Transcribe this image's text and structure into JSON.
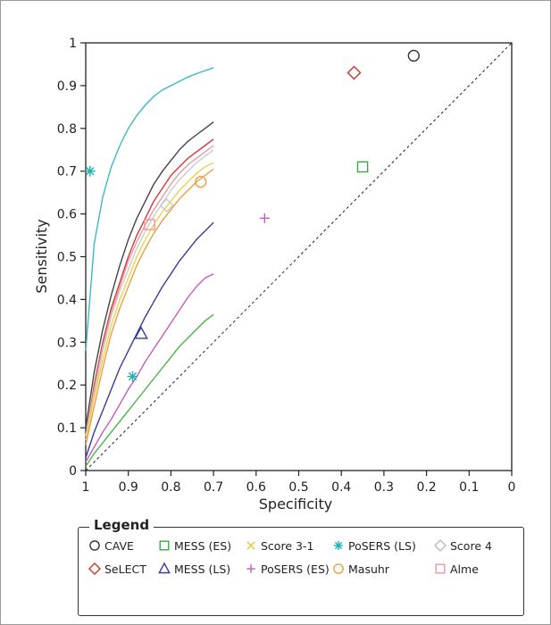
{
  "chart_data": {
    "type": "line",
    "xlabel": "Specificity",
    "ylabel": "Sensitivity",
    "xlim": [
      1,
      0
    ],
    "ylim": [
      0,
      1
    ],
    "x_reversed": true,
    "x_ticks": [
      "1",
      "0.9",
      "0.8",
      "0.7",
      "0.6",
      "0.5",
      "0.4",
      "0.3",
      "0.2",
      "0.1",
      "0"
    ],
    "y_ticks": [
      "0",
      "0.1",
      "0.2",
      "0.3",
      "0.4",
      "0.5",
      "0.6",
      "0.7",
      "0.8",
      "0.9",
      "1"
    ],
    "x_tick_values": [
      1,
      0.9,
      0.8,
      0.7,
      0.6,
      0.5,
      0.4,
      0.3,
      0.2,
      0.1,
      0
    ],
    "y_tick_values": [
      0,
      0.1,
      0.2,
      0.3,
      0.4,
      0.5,
      0.6,
      0.7,
      0.8,
      0.9,
      1
    ],
    "reference_line": "chance (dashed diagonal)",
    "legend_title": "Legend",
    "legend_placement": "bottom",
    "points": [
      {
        "name": "CAVE",
        "marker": "circle",
        "color": "#333333",
        "specificity": 0.23,
        "sensitivity": 0.97
      },
      {
        "name": "SeLECT",
        "marker": "diamond",
        "color": "#c0392b",
        "specificity": 0.37,
        "sensitivity": 0.93
      },
      {
        "name": "MESS (ES)",
        "marker": "square",
        "color": "#3aa845",
        "specificity": 0.35,
        "sensitivity": 0.71
      },
      {
        "name": "MESS (LS)",
        "marker": "triangle",
        "color": "#3a3a9a",
        "specificity": 0.87,
        "sensitivity": 0.32
      },
      {
        "name": "Score 3-1",
        "marker": "x",
        "color": "#e8c92f",
        "specificity": null,
        "sensitivity": null
      },
      {
        "name": "PoSERS (ES)",
        "marker": "plus",
        "color": "#c55cc0",
        "specificity": 0.58,
        "sensitivity": 0.59
      },
      {
        "name": "PoSERS (LS)",
        "marker": "asterisk",
        "color": "#1fb0b0",
        "specificity": 0.99,
        "sensitivity": 0.7
      },
      {
        "name": "PoSERS (LS)",
        "marker": "asterisk",
        "color": "#1fb0b0",
        "specificity": 0.89,
        "sensitivity": 0.22
      },
      {
        "name": "Masuhr",
        "marker": "circle",
        "color": "#e8a040",
        "specificity": 0.73,
        "sensitivity": 0.675
      },
      {
        "name": "Score 4",
        "marker": "diamond",
        "color": "#c8c8c8",
        "specificity": 0.81,
        "sensitivity": 0.62
      },
      {
        "name": "Alme",
        "marker": "square",
        "color": "#e89aa0",
        "specificity": 0.85,
        "sensitivity": 0.575
      }
    ],
    "curves": [
      {
        "color": "#3bb8c8",
        "specificity": [
          1,
          0.98,
          0.96,
          0.94,
          0.92,
          0.9,
          0.88,
          0.86,
          0.84,
          0.82,
          0.8,
          0.78,
          0.76,
          0.74,
          0.72,
          0.7
        ],
        "sensitivity": [
          0.28,
          0.53,
          0.64,
          0.71,
          0.76,
          0.8,
          0.83,
          0.855,
          0.875,
          0.89,
          0.9,
          0.91,
          0.92,
          0.928,
          0.935,
          0.942
        ]
      },
      {
        "color": "#444444",
        "specificity": [
          1,
          0.98,
          0.96,
          0.94,
          0.92,
          0.9,
          0.88,
          0.86,
          0.84,
          0.82,
          0.8,
          0.78,
          0.76,
          0.74,
          0.72,
          0.7
        ],
        "sensitivity": [
          0.1,
          0.23,
          0.33,
          0.41,
          0.48,
          0.54,
          0.59,
          0.63,
          0.67,
          0.7,
          0.725,
          0.75,
          0.77,
          0.785,
          0.8,
          0.815
        ]
      },
      {
        "color": "#d23a3a",
        "specificity": [
          1,
          0.98,
          0.96,
          0.94,
          0.92,
          0.9,
          0.88,
          0.86,
          0.84,
          0.82,
          0.8,
          0.78,
          0.76,
          0.74,
          0.72,
          0.7
        ],
        "sensitivity": [
          0.08,
          0.2,
          0.3,
          0.38,
          0.44,
          0.5,
          0.55,
          0.59,
          0.63,
          0.66,
          0.69,
          0.71,
          0.73,
          0.745,
          0.76,
          0.775
        ]
      },
      {
        "color": "#e89aa0",
        "specificity": [
          1,
          0.98,
          0.96,
          0.94,
          0.92,
          0.9,
          0.88,
          0.86,
          0.84,
          0.82,
          0.8,
          0.78,
          0.76,
          0.74,
          0.72,
          0.7
        ],
        "sensitivity": [
          0.08,
          0.19,
          0.29,
          0.37,
          0.43,
          0.49,
          0.535,
          0.575,
          0.61,
          0.64,
          0.67,
          0.695,
          0.715,
          0.73,
          0.745,
          0.76
        ]
      },
      {
        "color": "#cccccc",
        "specificity": [
          1,
          0.98,
          0.96,
          0.94,
          0.92,
          0.9,
          0.88,
          0.86,
          0.84,
          0.82,
          0.8,
          0.78,
          0.76,
          0.74,
          0.72,
          0.7
        ],
        "sensitivity": [
          0.08,
          0.18,
          0.28,
          0.36,
          0.42,
          0.47,
          0.52,
          0.56,
          0.595,
          0.625,
          0.655,
          0.68,
          0.7,
          0.72,
          0.735,
          0.75
        ]
      },
      {
        "color": "#f0d24a",
        "specificity": [
          1,
          0.98,
          0.96,
          0.94,
          0.92,
          0.9,
          0.88,
          0.86,
          0.84,
          0.82,
          0.8,
          0.78,
          0.76,
          0.74,
          0.72,
          0.7
        ],
        "sensitivity": [
          0.07,
          0.17,
          0.26,
          0.34,
          0.4,
          0.45,
          0.5,
          0.54,
          0.575,
          0.605,
          0.63,
          0.655,
          0.675,
          0.695,
          0.71,
          0.72
        ]
      },
      {
        "color": "#e8a040",
        "specificity": [
          1,
          0.98,
          0.96,
          0.94,
          0.92,
          0.9,
          0.88,
          0.86,
          0.84,
          0.82,
          0.8,
          0.78,
          0.76,
          0.74,
          0.72,
          0.7
        ],
        "sensitivity": [
          0.06,
          0.15,
          0.24,
          0.32,
          0.38,
          0.43,
          0.48,
          0.52,
          0.555,
          0.585,
          0.61,
          0.635,
          0.655,
          0.675,
          0.69,
          0.705
        ]
      },
      {
        "color": "#3a3a9a",
        "specificity": [
          1,
          0.98,
          0.96,
          0.94,
          0.92,
          0.9,
          0.88,
          0.86,
          0.84,
          0.82,
          0.8,
          0.78,
          0.76,
          0.74,
          0.72,
          0.7
        ],
        "sensitivity": [
          0.03,
          0.09,
          0.14,
          0.19,
          0.24,
          0.28,
          0.32,
          0.36,
          0.395,
          0.43,
          0.46,
          0.49,
          0.515,
          0.54,
          0.56,
          0.58
        ]
      },
      {
        "color": "#c55cc0",
        "specificity": [
          1,
          0.98,
          0.96,
          0.94,
          0.92,
          0.9,
          0.88,
          0.86,
          0.84,
          0.82,
          0.8,
          0.78,
          0.76,
          0.74,
          0.72,
          0.7
        ],
        "sensitivity": [
          0.02,
          0.055,
          0.09,
          0.12,
          0.155,
          0.19,
          0.22,
          0.255,
          0.285,
          0.315,
          0.345,
          0.375,
          0.405,
          0.43,
          0.45,
          0.46
        ]
      },
      {
        "color": "#4ab34a",
        "specificity": [
          1,
          0.98,
          0.96,
          0.94,
          0.92,
          0.9,
          0.88,
          0.86,
          0.84,
          0.82,
          0.8,
          0.78,
          0.76,
          0.74,
          0.72,
          0.7
        ],
        "sensitivity": [
          0.01,
          0.04,
          0.065,
          0.09,
          0.115,
          0.14,
          0.165,
          0.19,
          0.215,
          0.24,
          0.265,
          0.29,
          0.31,
          0.33,
          0.35,
          0.365
        ]
      }
    ]
  },
  "legend": {
    "title": "Legend",
    "entries": [
      {
        "label": "CAVE",
        "marker": "circle",
        "color": "#333333"
      },
      {
        "label": "MESS (ES)",
        "marker": "square",
        "color": "#3aa845"
      },
      {
        "label": "Score 3-1",
        "marker": "x",
        "color": "#e8c92f"
      },
      {
        "label": "PoSERS (LS)",
        "marker": "asterisk",
        "color": "#1fb0b0"
      },
      {
        "label": "Score 4",
        "marker": "diamond",
        "color": "#bbbbbb"
      },
      {
        "label": "SeLECT",
        "marker": "diamond",
        "color": "#c0392b"
      },
      {
        "label": "MESS (LS)",
        "marker": "triangle",
        "color": "#3a3a9a"
      },
      {
        "label": "PoSERS (ES)",
        "marker": "plus",
        "color": "#c55cc0"
      },
      {
        "label": "Masuhr",
        "marker": "circle",
        "color": "#e8a040"
      },
      {
        "label": "Alme",
        "marker": "square",
        "color": "#e89aa0"
      }
    ]
  }
}
